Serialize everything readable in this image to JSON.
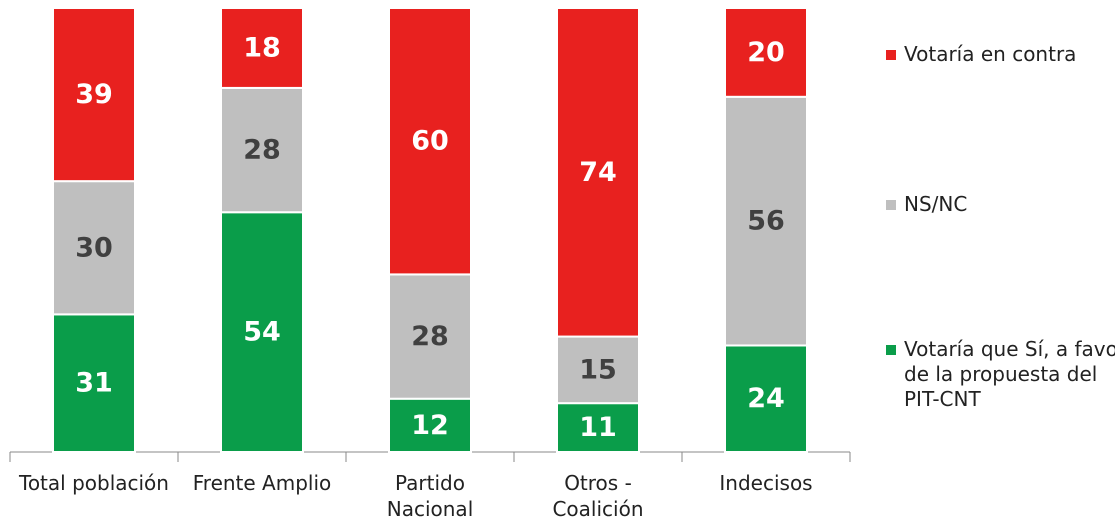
{
  "chart_data": {
    "type": "stacked_bar",
    "categories": [
      "Total población",
      "Frente Amplio",
      "Partido Nacional",
      "Otros - Coalición",
      "Indecisos"
    ],
    "series": [
      {
        "name": "Votaría que Sí, a favor de la propuesta del PIT-CNT",
        "color": "#0a9d4a",
        "label_color": "#ffffff",
        "values": [
          31,
          54,
          12,
          11,
          24
        ]
      },
      {
        "name": "NS/NC",
        "color": "#bfbfbf",
        "label_color": "#404040",
        "values": [
          30,
          28,
          28,
          15,
          56
        ]
      },
      {
        "name": "Votaría en contra",
        "color": "#e8211f",
        "label_color": "#ffffff",
        "values": [
          39,
          18,
          60,
          74,
          20
        ]
      }
    ]
  }
}
